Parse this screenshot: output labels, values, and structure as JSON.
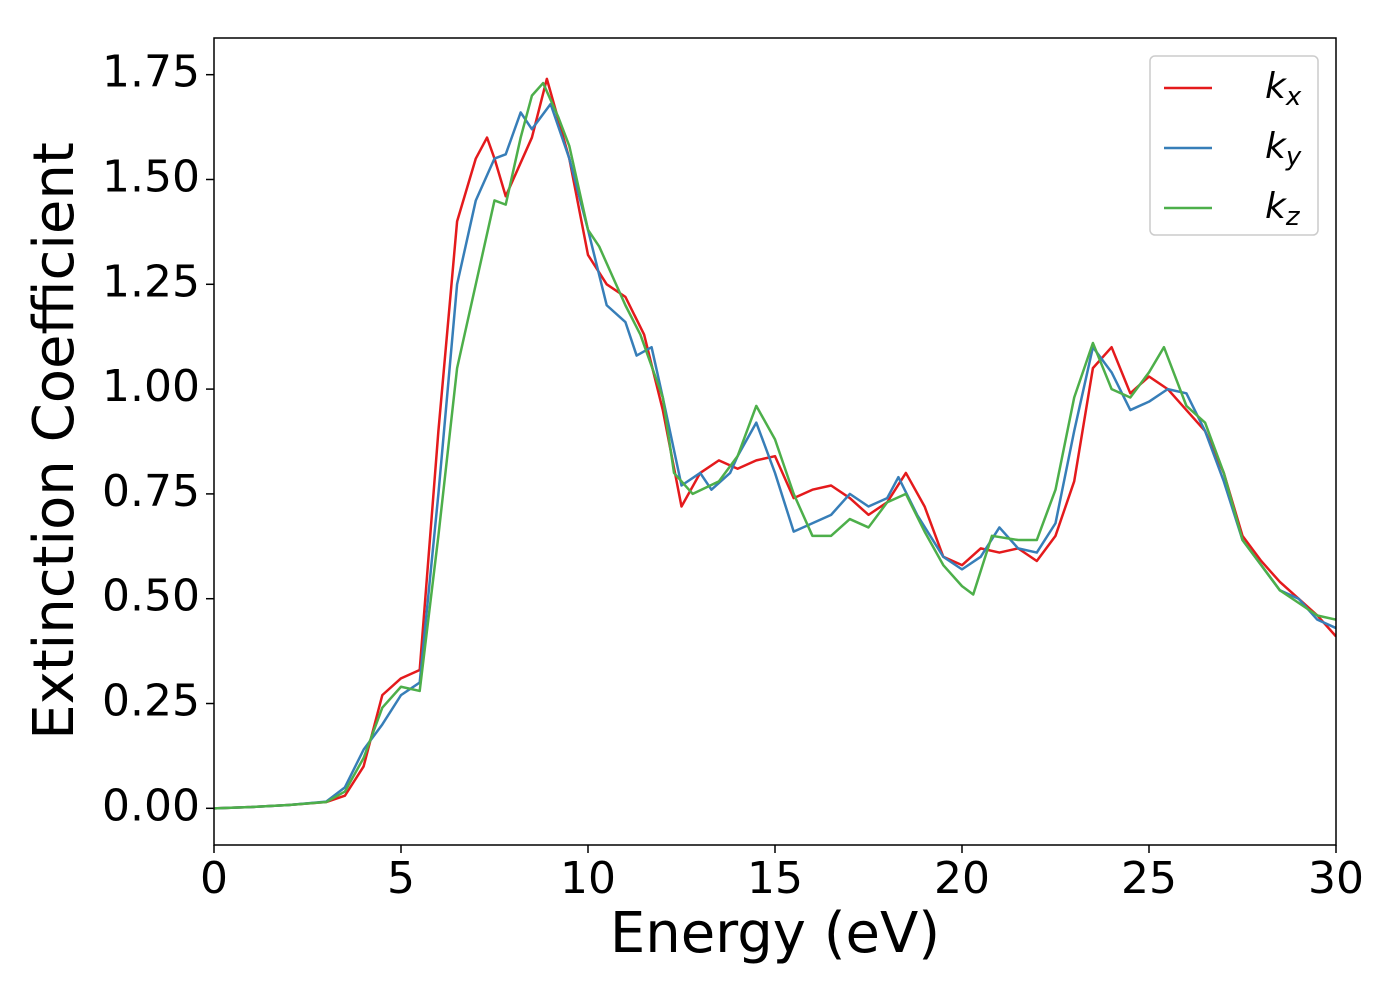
{
  "chart_data": {
    "type": "line",
    "xlabel": "Energy (eV)",
    "ylabel": "Extinction Coefficient",
    "xlim": [
      0,
      30
    ],
    "ylim": [
      -0.0875,
      1.8375
    ],
    "xticks": [
      0,
      5,
      10,
      15,
      20,
      25,
      30
    ],
    "yticks": [
      {
        "value": 0,
        "label": "0.00"
      },
      {
        "value": 0.25,
        "label": "0.25"
      },
      {
        "value": 0.5,
        "label": "0.50"
      },
      {
        "value": 0.75,
        "label": "0.75"
      },
      {
        "value": 1,
        "label": "1.00"
      },
      {
        "value": 1.25,
        "label": "1.25"
      },
      {
        "value": 1.5,
        "label": "1.50"
      },
      {
        "value": 1.75,
        "label": "1.75"
      }
    ],
    "grid": false,
    "legend": "upper right",
    "series": [
      {
        "name": "k_x",
        "color": "#e41a1c",
        "x": [
          0,
          1,
          2,
          3,
          3.5,
          4,
          4.5,
          5,
          5.5,
          6,
          6.5,
          7,
          7.3,
          7.5,
          7.8,
          8,
          8.5,
          8.9,
          9.5,
          10,
          10.5,
          11,
          11.5,
          12,
          12.5,
          13,
          13.5,
          14,
          14.5,
          15,
          15.5,
          16,
          16.5,
          17,
          17.5,
          18,
          18.5,
          19,
          19.5,
          20,
          20.5,
          21,
          21.5,
          22,
          22.5,
          23,
          23.5,
          24,
          24.5,
          25,
          25.5,
          26,
          26.5,
          27,
          27.5,
          28,
          28.5,
          29,
          29.5,
          30
        ],
        "values": [
          0,
          0.003,
          0.008,
          0.015,
          0.03,
          0.1,
          0.27,
          0.31,
          0.33,
          0.9,
          1.4,
          1.55,
          1.6,
          1.55,
          1.46,
          1.5,
          1.6,
          1.74,
          1.55,
          1.32,
          1.25,
          1.22,
          1.13,
          0.95,
          0.72,
          0.8,
          0.83,
          0.81,
          0.83,
          0.84,
          0.74,
          0.76,
          0.77,
          0.74,
          0.7,
          0.73,
          0.8,
          0.72,
          0.6,
          0.58,
          0.62,
          0.61,
          0.62,
          0.59,
          0.65,
          0.78,
          1.05,
          1.1,
          0.99,
          1.03,
          1.0,
          0.95,
          0.9,
          0.8,
          0.65,
          0.59,
          0.54,
          0.5,
          0.46,
          0.41
        ]
      },
      {
        "name": "k_y",
        "color": "#377eb8",
        "x": [
          0,
          1,
          2,
          3,
          3.5,
          4,
          4.5,
          5,
          5.5,
          6,
          6.5,
          7,
          7.5,
          7.8,
          8.2,
          8.5,
          9,
          9.5,
          10,
          10.5,
          11,
          11.3,
          11.7,
          12,
          12.5,
          13,
          13.3,
          13.8,
          14,
          14.5,
          15,
          15.5,
          16,
          16.5,
          17,
          17.5,
          18,
          18.3,
          18.8,
          19.5,
          20,
          20.5,
          21,
          21.5,
          22,
          22.5,
          23,
          23.5,
          24,
          24.5,
          25,
          25.5,
          26,
          26.5,
          27,
          27.5,
          28,
          28.5,
          29,
          29.5,
          30
        ],
        "values": [
          0,
          0.003,
          0.008,
          0.016,
          0.05,
          0.14,
          0.2,
          0.27,
          0.3,
          0.75,
          1.25,
          1.45,
          1.55,
          1.56,
          1.66,
          1.62,
          1.68,
          1.55,
          1.38,
          1.2,
          1.16,
          1.08,
          1.1,
          0.98,
          0.77,
          0.8,
          0.76,
          0.8,
          0.84,
          0.92,
          0.8,
          0.66,
          0.68,
          0.7,
          0.75,
          0.72,
          0.74,
          0.79,
          0.7,
          0.6,
          0.57,
          0.6,
          0.67,
          0.62,
          0.61,
          0.68,
          0.9,
          1.1,
          1.04,
          0.95,
          0.97,
          1.0,
          0.99,
          0.9,
          0.78,
          0.64,
          0.58,
          0.52,
          0.5,
          0.45,
          0.43
        ]
      },
      {
        "name": "k_z",
        "color": "#4daf4a",
        "x": [
          0,
          1,
          2,
          3,
          3.5,
          4,
          4.5,
          5,
          5.5,
          6,
          6.5,
          7,
          7.5,
          7.8,
          8.2,
          8.5,
          8.8,
          9.2,
          9.5,
          10,
          10.3,
          10.6,
          11,
          11.4,
          12,
          12.3,
          12.8,
          13.5,
          14,
          14.5,
          15,
          15.5,
          16,
          16.5,
          17,
          17.5,
          18,
          18.5,
          19,
          19.5,
          20,
          20.3,
          20.8,
          21.5,
          22,
          22.5,
          23,
          23.5,
          24,
          24.5,
          25,
          25.4,
          26,
          26.5,
          27,
          27.5,
          28,
          28.5,
          29,
          29.5,
          30
        ],
        "values": [
          0,
          0.003,
          0.008,
          0.015,
          0.04,
          0.12,
          0.24,
          0.29,
          0.28,
          0.65,
          1.05,
          1.25,
          1.45,
          1.44,
          1.6,
          1.7,
          1.73,
          1.65,
          1.58,
          1.38,
          1.34,
          1.28,
          1.2,
          1.13,
          0.98,
          0.8,
          0.75,
          0.78,
          0.84,
          0.96,
          0.88,
          0.75,
          0.65,
          0.65,
          0.69,
          0.67,
          0.73,
          0.75,
          0.66,
          0.58,
          0.53,
          0.51,
          0.65,
          0.64,
          0.64,
          0.76,
          0.98,
          1.11,
          1.0,
          0.98,
          1.04,
          1.1,
          0.96,
          0.92,
          0.8,
          0.64,
          0.58,
          0.52,
          0.49,
          0.46,
          0.45
        ]
      }
    ]
  }
}
